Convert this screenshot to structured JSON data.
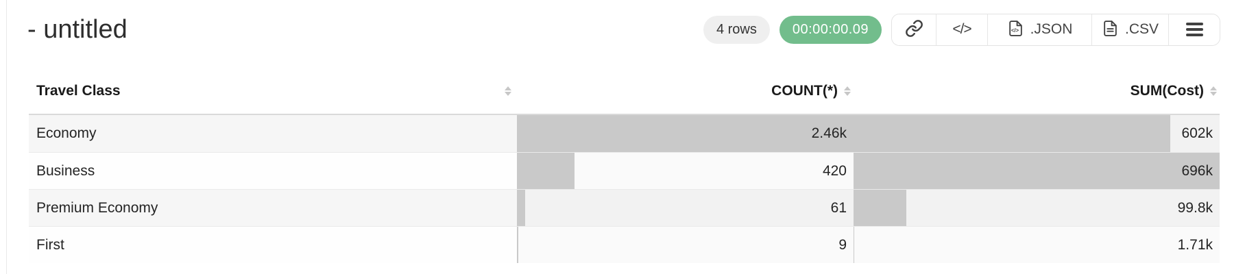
{
  "header": {
    "title": "- untitled",
    "row_count_badge": "4 rows",
    "timer_badge": "00:00:00.09",
    "buttons": {
      "link_icon": "link-icon",
      "code_label": "</>",
      "json_label": ".JSON",
      "csv_label": ".CSV",
      "menu_icon": "hamburger-menu-icon"
    }
  },
  "colors": {
    "accent_green": "#72bd8c",
    "bar_gray": "#c9c9c9",
    "zebra_row": "#f6f6f6"
  },
  "table": {
    "columns": [
      {
        "key": "travel_class",
        "label": "Travel Class",
        "align": "left",
        "sortable": true
      },
      {
        "key": "count",
        "label": "COUNT(*)",
        "align": "right",
        "sortable": true
      },
      {
        "key": "sum_cost",
        "label": "SUM(Cost)",
        "align": "right",
        "sortable": true
      }
    ],
    "rows": [
      {
        "travel_class": "Economy",
        "count_display": "2.46k",
        "count_value": 2460,
        "sum_display": "602k",
        "sum_value": 602000
      },
      {
        "travel_class": "Business",
        "count_display": "420",
        "count_value": 420,
        "sum_display": "696k",
        "sum_value": 696000
      },
      {
        "travel_class": "Premium Economy",
        "count_display": "61",
        "count_value": 61,
        "sum_display": "99.8k",
        "sum_value": 99800
      },
      {
        "travel_class": "First",
        "count_display": "9",
        "count_value": 9,
        "sum_display": "1.71k",
        "sum_value": 1710
      }
    ]
  }
}
